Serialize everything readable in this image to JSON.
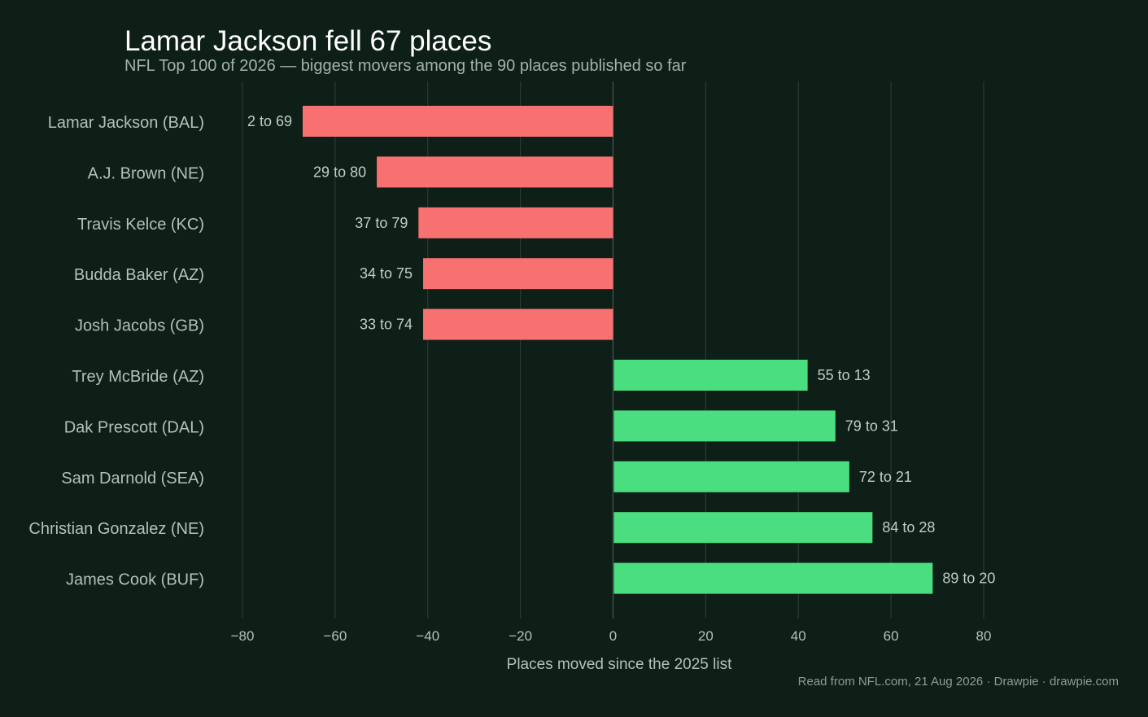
{
  "chart_data": {
    "type": "bar",
    "orientation": "horizontal",
    "title": "Lamar Jackson fell 67 places",
    "subtitle": "NFL Top 100 of 2026 — biggest movers among the 90 places published so far",
    "xlabel": "Places moved since the 2025 list",
    "ylabel": "",
    "xlim": [
      -80,
      80
    ],
    "xticks": [
      -80,
      -60,
      -40,
      -20,
      0,
      20,
      40,
      60,
      80
    ],
    "xtick_labels": [
      "−80",
      "−60",
      "−40",
      "−20",
      "0",
      "20",
      "40",
      "60",
      "80"
    ],
    "grid": true,
    "categories": [
      "Lamar Jackson  (BAL)",
      "A.J. Brown  (NE)",
      "Travis Kelce  (KC)",
      "Budda Baker  (AZ)",
      "Josh Jacobs  (GB)",
      "Trey McBride  (AZ)",
      "Dak Prescott  (DAL)",
      "Sam Darnold  (SEA)",
      "Christian Gonzalez  (NE)",
      "James Cook  (BUF)"
    ],
    "values": [
      -67,
      -51,
      -42,
      -41,
      -41,
      42,
      48,
      51,
      56,
      69
    ],
    "data_labels": [
      "2 to 69",
      "29 to 80",
      "37 to 79",
      "34 to 75",
      "33 to 74",
      "55 to 13",
      "79 to 31",
      "72 to 21",
      "84 to 28",
      "89 to 20"
    ],
    "colors": {
      "negative": "#f87171",
      "positive": "#4ade80",
      "background": "#0e1f18"
    }
  },
  "footer": "Read from NFL.com, 21 Aug 2026  ·  Drawpie · drawpie.com"
}
